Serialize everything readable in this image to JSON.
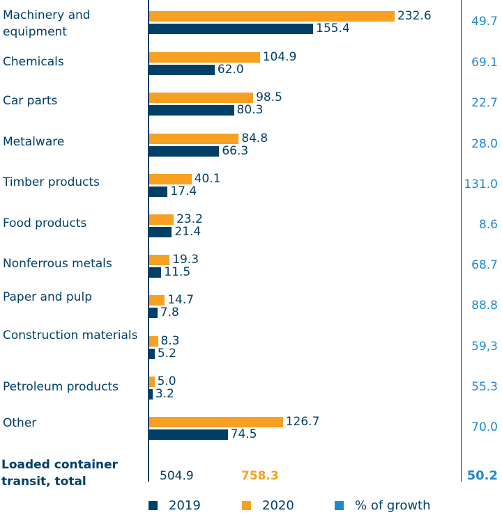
{
  "chart_data": {
    "type": "bar",
    "orientation": "horizontal",
    "categories": [
      "Machinery and equipment",
      "Chemicals",
      "Car parts",
      "Metalware",
      "Timber products",
      "Food products",
      "Nonferrous metals",
      "Paper and pulp",
      "Construction materials",
      "Petroleum products",
      "Other"
    ],
    "series": [
      {
        "name": "2019",
        "color": "#003F66",
        "values": [
          155.4,
          62.0,
          80.3,
          66.3,
          17.4,
          21.4,
          11.5,
          7.8,
          5.2,
          3.2,
          74.5
        ],
        "labels": [
          "155.4",
          "62.0",
          "80.3",
          "66.3",
          "17.4",
          "21.4",
          "11.5",
          "7.8",
          "5.2",
          "3.2",
          "74.5"
        ]
      },
      {
        "name": "2020",
        "color": "#F7A021",
        "values": [
          232.6,
          104.9,
          98.5,
          84.8,
          40.1,
          23.2,
          19.3,
          14.7,
          8.3,
          5.0,
          126.7
        ],
        "labels": [
          "232.6",
          "104.9",
          "98.5",
          "84.8",
          "40.1",
          "23.2",
          "19.3",
          "14.7",
          "8.3",
          "5.0",
          "126.7"
        ]
      },
      {
        "name": "% of growth",
        "color": "#1E8AD0",
        "values": [
          49.7,
          69.1,
          22.7,
          28.0,
          131.0,
          8.6,
          68.7,
          88.8,
          59.3,
          55.3,
          70.0
        ],
        "labels": [
          "49.7",
          "69.1",
          "22.7",
          "28.0",
          "131.0",
          "8.6",
          "68.7",
          "88.8",
          "59,3",
          "55.3",
          "70.0"
        ]
      }
    ],
    "total": {
      "label": "Loaded container transit, total",
      "v2019": "504.9",
      "v2020": "758.3",
      "growth": "50.2"
    },
    "legend": [
      "2019",
      "2020",
      "% of growth"
    ],
    "legend_position": "bottom",
    "grid": false
  }
}
